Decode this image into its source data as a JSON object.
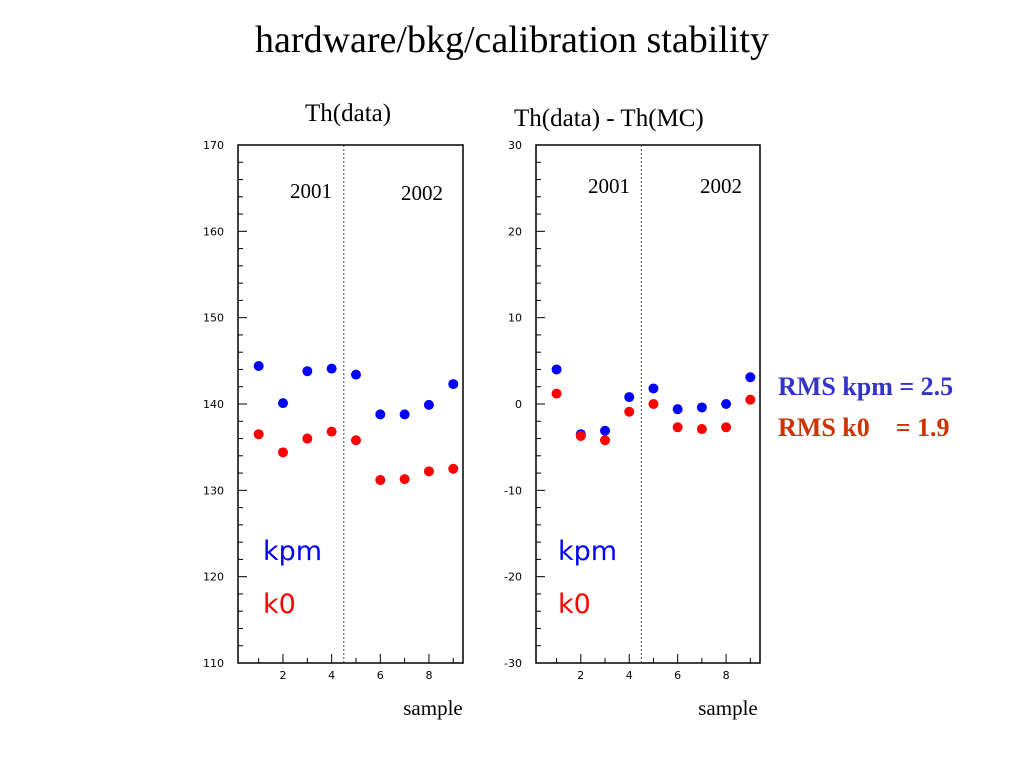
{
  "title": "hardware/bkg/calibration stability",
  "annotations": {
    "rms_kpm": "RMS kpm = 2.5",
    "rms_k0": "RMS k0    = 1.9"
  },
  "colors": {
    "kpm": "#0000ff",
    "k0": "#ff0000",
    "rms_kpm": "#3333cc",
    "rms_k0": "#cc3300"
  },
  "chart_data": [
    {
      "type": "scatter",
      "title": "Th(data)",
      "xlabel": "sample",
      "ylabel": "",
      "xlim": [
        0.15,
        9.4
      ],
      "ylim": [
        110,
        170
      ],
      "x_ticks": [
        2,
        4,
        6,
        8
      ],
      "y_ticks": [
        110,
        120,
        130,
        140,
        150,
        160,
        170
      ],
      "divider_x": 4.5,
      "period_labels": [
        "2001",
        "2002"
      ],
      "legend": [
        "kpm",
        "k0"
      ],
      "legend_position": "bottom-left",
      "series": [
        {
          "name": "kpm",
          "x": [
            1,
            2,
            3,
            4,
            5,
            6,
            7,
            8,
            9
          ],
          "y": [
            144.4,
            140.1,
            143.8,
            144.1,
            143.4,
            138.8,
            138.8,
            139.9,
            142.3
          ]
        },
        {
          "name": "k0",
          "x": [
            1,
            2,
            3,
            4,
            5,
            6,
            7,
            8,
            9
          ],
          "y": [
            136.5,
            134.4,
            136.0,
            136.8,
            135.8,
            131.2,
            131.3,
            132.2,
            132.5
          ]
        }
      ]
    },
    {
      "type": "scatter",
      "title": "Th(data) - Th(MC)",
      "xlabel": "sample",
      "ylabel": "",
      "xlim": [
        0.15,
        9.4
      ],
      "ylim": [
        -30,
        30
      ],
      "x_ticks": [
        2,
        4,
        6,
        8
      ],
      "y_ticks": [
        -30,
        -20,
        -10,
        0,
        10,
        20,
        30
      ],
      "divider_x": 4.5,
      "period_labels": [
        "2001",
        "2002"
      ],
      "legend": [
        "kpm",
        "k0"
      ],
      "legend_position": "bottom-left",
      "series": [
        {
          "name": "kpm",
          "x": [
            1,
            2,
            3,
            4,
            5,
            6,
            7,
            8,
            9
          ],
          "y": [
            4.0,
            -3.5,
            -3.1,
            0.8,
            1.8,
            -0.6,
            -0.4,
            0.0,
            3.1
          ]
        },
        {
          "name": "k0",
          "x": [
            1,
            2,
            3,
            4,
            5,
            6,
            7,
            8,
            9
          ],
          "y": [
            1.2,
            -3.7,
            -4.2,
            -0.9,
            0.0,
            -2.7,
            -2.9,
            -2.7,
            0.5
          ]
        }
      ]
    }
  ]
}
